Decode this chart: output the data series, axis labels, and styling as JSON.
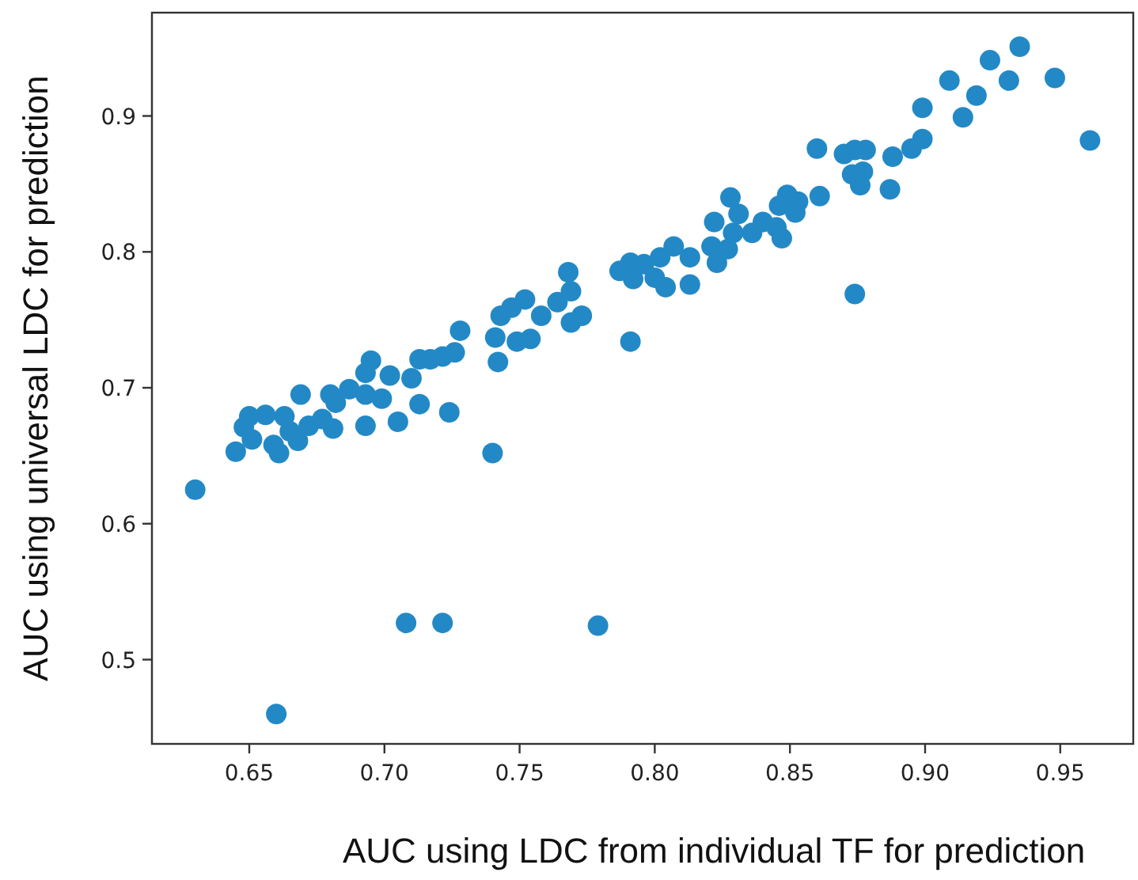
{
  "chart_data": {
    "type": "scatter",
    "xlabel": "AUC using LDC from individual TF for prediction",
    "ylabel": "AUC using universal LDC for prediction",
    "xlim": [
      0.614,
      0.977
    ],
    "ylim": [
      0.438,
      0.976
    ],
    "xticks": [
      {
        "value": 0.65,
        "label": "0.65"
      },
      {
        "value": 0.7,
        "label": "0.70"
      },
      {
        "value": 0.75,
        "label": "0.75"
      },
      {
        "value": 0.8,
        "label": "0.80"
      },
      {
        "value": 0.85,
        "label": "0.85"
      },
      {
        "value": 0.9,
        "label": "0.90"
      },
      {
        "value": 0.95,
        "label": "0.95"
      }
    ],
    "yticks": [
      0.5,
      0.6,
      0.7,
      0.8,
      0.9
    ],
    "grid": false,
    "marker": "circle",
    "series": [
      {
        "color": "#2389c6",
        "x": [
          0.63,
          0.66,
          0.708,
          0.7215,
          0.779,
          0.74,
          0.874,
          0.791,
          0.961,
          0.645,
          0.65,
          0.648,
          0.656,
          0.651,
          0.659,
          0.661,
          0.663,
          0.668,
          0.669,
          0.672,
          0.68,
          0.681,
          0.682,
          0.677,
          0.687,
          0.693,
          0.693,
          0.695,
          0.693,
          0.699,
          0.702,
          0.705,
          0.71,
          0.713,
          0.713,
          0.717,
          0.7215,
          0.724,
          0.726,
          0.728,
          0.665,
          0.742,
          0.741,
          0.743,
          0.749,
          0.747,
          0.752,
          0.754,
          0.758,
          0.764,
          0.768,
          0.769,
          0.769,
          0.773,
          0.787,
          0.791,
          0.792,
          0.796,
          0.8,
          0.804,
          0.802,
          0.807,
          0.813,
          0.813,
          0.821,
          0.822,
          0.823,
          0.827,
          0.828,
          0.829,
          0.831,
          0.836,
          0.84,
          0.845,
          0.847,
          0.846,
          0.849,
          0.853,
          0.852,
          0.861,
          0.86,
          0.87,
          0.874,
          0.878,
          0.873,
          0.876,
          0.877,
          0.888,
          0.887,
          0.895,
          0.899,
          0.899,
          0.909,
          0.914,
          0.919,
          0.924,
          0.931,
          0.935,
          0.948
        ],
        "values": [
          0.625,
          0.46,
          0.527,
          0.527,
          0.525,
          0.652,
          0.769,
          0.734,
          0.882,
          0.653,
          0.679,
          0.671,
          0.68,
          0.662,
          0.658,
          0.652,
          0.679,
          0.661,
          0.695,
          0.672,
          0.695,
          0.67,
          0.689,
          0.677,
          0.699,
          0.672,
          0.695,
          0.72,
          0.711,
          0.692,
          0.709,
          0.675,
          0.707,
          0.688,
          0.721,
          0.721,
          0.723,
          0.682,
          0.726,
          0.742,
          0.668,
          0.719,
          0.737,
          0.753,
          0.734,
          0.759,
          0.765,
          0.736,
          0.753,
          0.763,
          0.785,
          0.771,
          0.748,
          0.753,
          0.786,
          0.792,
          0.78,
          0.791,
          0.781,
          0.774,
          0.796,
          0.804,
          0.796,
          0.776,
          0.804,
          0.822,
          0.792,
          0.802,
          0.84,
          0.814,
          0.828,
          0.814,
          0.822,
          0.818,
          0.81,
          0.834,
          0.842,
          0.837,
          0.829,
          0.841,
          0.876,
          0.872,
          0.875,
          0.875,
          0.857,
          0.849,
          0.859,
          0.87,
          0.846,
          0.876,
          0.883,
          0.906,
          0.926,
          0.899,
          0.915,
          0.941,
          0.926,
          0.951,
          0.928
        ]
      }
    ]
  }
}
